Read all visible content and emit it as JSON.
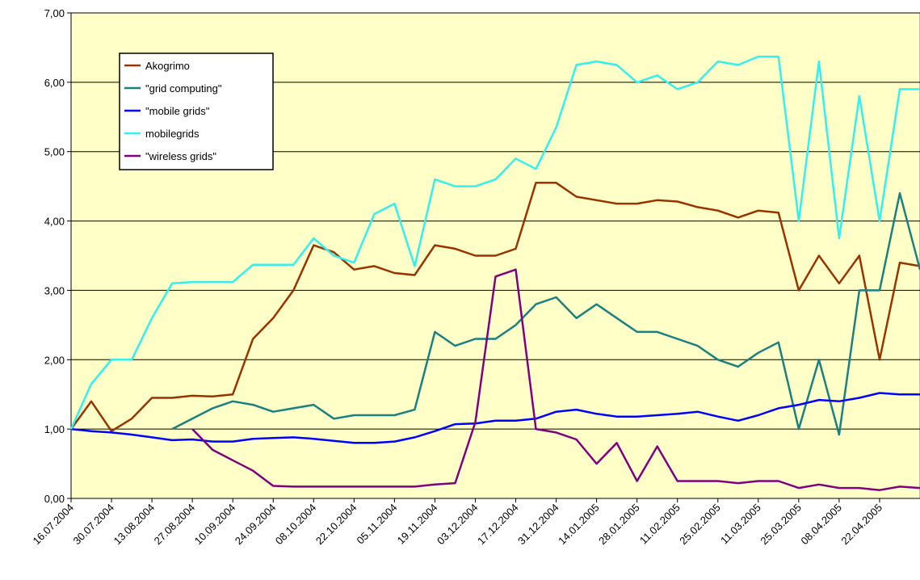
{
  "chart_data": {
    "type": "line",
    "x": [
      "16.07.2004",
      "23.07.2004",
      "30.07.2004",
      "06.08.2004",
      "13.08.2004",
      "20.08.2004",
      "27.08.2004",
      "03.09.2004",
      "10.09.2004",
      "17.09.2004",
      "24.09.2004",
      "01.10.2004",
      "08.10.2004",
      "15.10.2004",
      "22.10.2004",
      "29.10.2004",
      "05.11.2004",
      "12.11.2004",
      "19.11.2004",
      "26.11.2004",
      "03.12.2004",
      "10.12.2004",
      "17.12.2004",
      "24.12.2004",
      "31.12.2004",
      "07.01.2005",
      "14.01.2005",
      "21.01.2005",
      "28.01.2005",
      "04.02.2005",
      "11.02.2005",
      "18.02.2005",
      "25.02.2005",
      "04.03.2005",
      "11.03.2005",
      "18.03.2005",
      "25.03.2005",
      "01.04.2005",
      "08.04.2005",
      "15.04.2005",
      "22.04.2005",
      "29.04.2005",
      "06.05.2005"
    ],
    "series": [
      {
        "name": "Akogrimo",
        "color": "#993300",
        "values": [
          1.0,
          1.4,
          0.97,
          1.15,
          1.45,
          1.45,
          1.48,
          1.47,
          1.5,
          2.3,
          2.6,
          3.0,
          3.65,
          3.55,
          3.3,
          3.35,
          3.25,
          3.22,
          3.65,
          3.6,
          3.5,
          3.5,
          3.6,
          4.55,
          4.55,
          4.35,
          4.3,
          4.25,
          4.25,
          4.3,
          4.28,
          4.2,
          4.15,
          4.05,
          4.15,
          4.12,
          3.0,
          3.5,
          3.1,
          3.5,
          2.0,
          3.4,
          3.35
        ]
      },
      {
        "name": "\"grid computing\"",
        "color": "#1a8080",
        "values": [
          null,
          null,
          null,
          null,
          null,
          1.0,
          1.15,
          1.3,
          1.4,
          1.35,
          1.25,
          1.3,
          1.35,
          1.15,
          1.2,
          1.2,
          1.2,
          1.28,
          2.4,
          2.2,
          2.3,
          2.3,
          2.5,
          2.8,
          2.9,
          2.6,
          2.8,
          2.6,
          2.4,
          2.4,
          2.3,
          2.2,
          2.0,
          1.9,
          2.1,
          2.25,
          1.0,
          2.0,
          0.92,
          3.0,
          3.0,
          4.4,
          3.3
        ]
      },
      {
        "name": "\"mobile grids\"",
        "color": "#0000ff",
        "values": [
          1.0,
          0.97,
          0.95,
          0.92,
          0.88,
          0.84,
          0.85,
          0.82,
          0.82,
          0.86,
          0.87,
          0.88,
          0.86,
          0.83,
          0.8,
          0.8,
          0.82,
          0.88,
          0.97,
          1.07,
          1.08,
          1.12,
          1.12,
          1.15,
          1.25,
          1.28,
          1.22,
          1.18,
          1.18,
          1.2,
          1.22,
          1.25,
          1.18,
          1.12,
          1.2,
          1.3,
          1.35,
          1.42,
          1.4,
          1.45,
          1.52,
          1.5,
          1.5
        ]
      },
      {
        "name": "mobilegrids",
        "color": "#33f0f0",
        "values": [
          1.0,
          1.65,
          2.0,
          2.0,
          2.6,
          3.1,
          3.12,
          3.12,
          3.12,
          3.37,
          3.37,
          3.37,
          3.75,
          3.5,
          3.4,
          4.1,
          4.25,
          3.35,
          4.6,
          4.5,
          4.5,
          4.6,
          4.9,
          4.75,
          5.35,
          6.25,
          6.3,
          6.25,
          6.0,
          6.1,
          5.9,
          6.0,
          6.3,
          6.25,
          6.37,
          6.37,
          4.0,
          6.3,
          3.75,
          5.8,
          4.0,
          5.9,
          5.9
        ]
      },
      {
        "name": "\"wireless grids\"",
        "color": "#800080",
        "values": [
          null,
          null,
          null,
          null,
          null,
          null,
          1.0,
          0.7,
          0.55,
          0.4,
          0.18,
          0.17,
          0.17,
          0.17,
          0.17,
          0.17,
          0.17,
          0.17,
          0.2,
          0.22,
          1.1,
          3.2,
          3.3,
          1.0,
          0.95,
          0.85,
          0.5,
          0.8,
          0.25,
          0.75,
          0.25,
          0.25,
          0.25,
          0.22,
          0.25,
          0.25,
          0.15,
          0.2,
          0.15,
          0.15,
          0.12,
          0.17,
          0.15
        ]
      }
    ],
    "xlim": [
      "16.07.2004",
      "06.05.2005"
    ],
    "xticks": [
      "16.07.2004",
      "30.07.2004",
      "13.08.2004",
      "27.08.2004",
      "10.09.2004",
      "24.09.2004",
      "08.10.2004",
      "22.10.2004",
      "05.11.2004",
      "19.11.2004",
      "03.12.2004",
      "17.12.2004",
      "31.12.2004",
      "14.01.2005",
      "28.01.2005",
      "11.02.2005",
      "25.02.2005",
      "11.03.2005",
      "25.03.2005",
      "08.04.2005",
      "22.04.2005"
    ],
    "ylim": [
      0,
      7
    ],
    "yticks": [
      {
        "value": 0,
        "label": "0,00"
      },
      {
        "value": 1,
        "label": "1,00"
      },
      {
        "value": 2,
        "label": "2,00"
      },
      {
        "value": 3,
        "label": "3,00"
      },
      {
        "value": 4,
        "label": "4,00"
      },
      {
        "value": 5,
        "label": "5,00"
      },
      {
        "value": 6,
        "label": "6,00"
      },
      {
        "value": 7,
        "label": "7,00"
      }
    ],
    "grid": true,
    "legend": "upper left",
    "background": "#ffffc8"
  }
}
